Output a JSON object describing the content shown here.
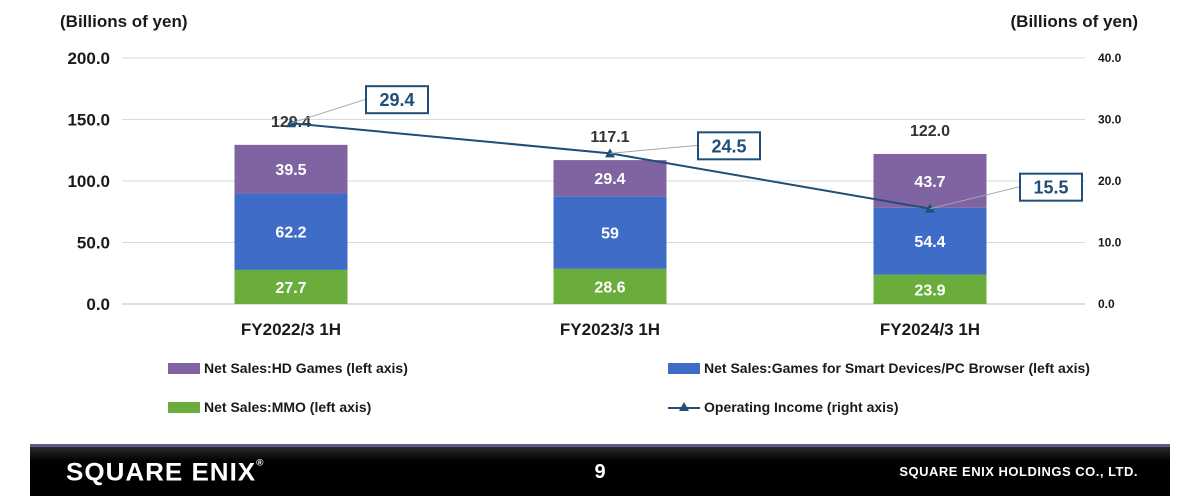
{
  "chart_data": {
    "type": "bar",
    "stacked": true,
    "categories": [
      "FY2022/3 1H",
      "FY2023/3 1H",
      "FY2024/3 1H"
    ],
    "left_axis": {
      "label": "(Billions of yen)",
      "min": 0,
      "max": 200,
      "ticks": [
        "0.0",
        "50.0",
        "100.0",
        "150.0",
        "200.0"
      ]
    },
    "right_axis": {
      "label": "(Billions of yen)",
      "min": 0,
      "max": 40,
      "ticks": [
        "0.0",
        "10.0",
        "20.0",
        "30.0",
        "40.0"
      ]
    },
    "grid": true,
    "series": [
      {
        "name": "Net Sales:MMO (left axis)",
        "axis": "left",
        "type": "bar",
        "color": "#6aad3d",
        "values": [
          27.7,
          28.6,
          23.9
        ],
        "labels": [
          "27.7",
          "28.6",
          "23.9"
        ]
      },
      {
        "name": "Net Sales:Games for Smart Devices/PC Browser (left axis)",
        "axis": "left",
        "type": "bar",
        "color": "#3f6cc6",
        "values": [
          62.2,
          59,
          54.4
        ],
        "labels": [
          "62.2",
          "59",
          "54.4"
        ]
      },
      {
        "name": "Net Sales:HD Games (left axis)",
        "axis": "left",
        "type": "bar",
        "color": "#8064a2",
        "values": [
          39.5,
          29.4,
          43.7
        ],
        "labels": [
          "39.5",
          "29.4",
          "43.7"
        ]
      },
      {
        "name": "Operating Income (right axis)",
        "axis": "right",
        "type": "line",
        "color": "#1f4e79",
        "values": [
          29.4,
          24.5,
          15.5
        ],
        "labels": [
          "29.4",
          "24.5",
          "15.5"
        ]
      }
    ],
    "totals": [
      "129.4",
      "117.1",
      "122.0"
    ]
  },
  "legend": {
    "hd": "Net Sales:HD Games (left axis)",
    "smart": "Net Sales:Games for Smart Devices/PC Browser (left axis)",
    "mmo": "Net Sales:MMO (left axis)",
    "op": "Operating Income (right axis)"
  },
  "footer": {
    "logo": "SQUARE ENIX",
    "page": "9",
    "company": "SQUARE ENIX HOLDINGS CO., LTD."
  }
}
